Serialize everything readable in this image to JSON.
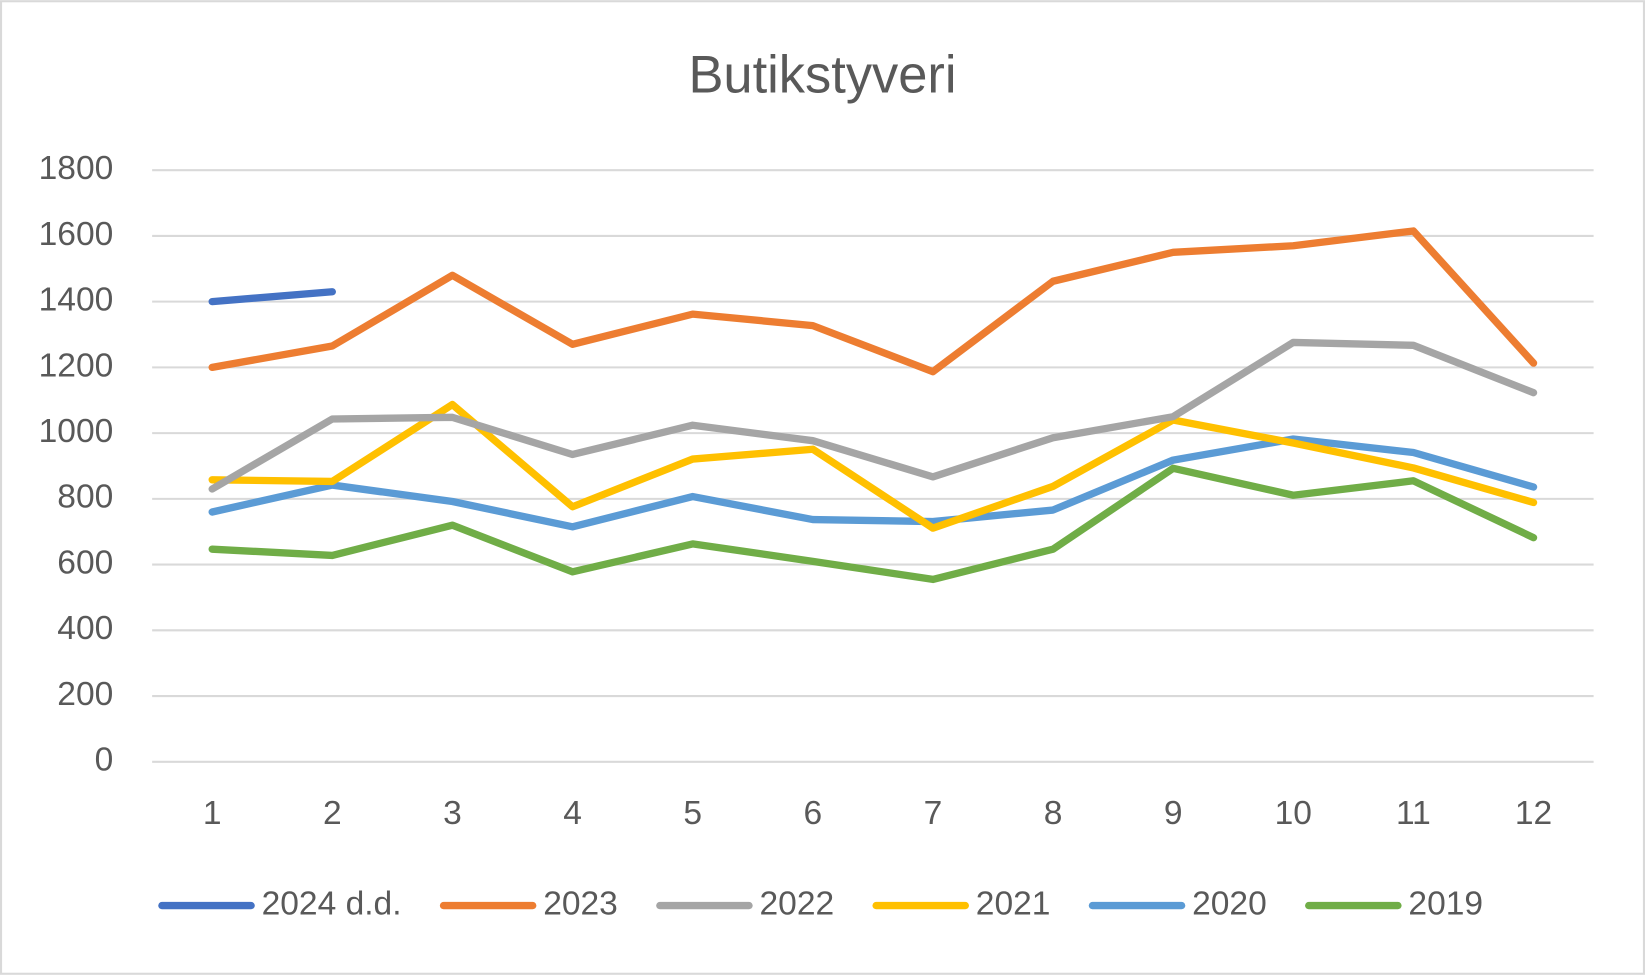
{
  "chart_data": {
    "type": "line",
    "title": "Butikstyveri",
    "categories": [
      1,
      2,
      3,
      4,
      5,
      6,
      7,
      8,
      9,
      10,
      11,
      12
    ],
    "series": [
      {
        "name": "2024 d.d.",
        "color": "#4472c4",
        "values": [
          1400,
          1430,
          null,
          null,
          null,
          null,
          null,
          null,
          null,
          null,
          null,
          null
        ]
      },
      {
        "name": "2023",
        "color": "#ed7d31",
        "values": [
          1200,
          1265,
          1480,
          1270,
          1362,
          1327,
          1187,
          1462,
          1550,
          1570,
          1615,
          1213
        ]
      },
      {
        "name": "2022",
        "color": "#a5a5a5",
        "values": [
          830,
          1043,
          1048,
          935,
          1024,
          977,
          867,
          986,
          1050,
          1276,
          1267,
          1123
        ]
      },
      {
        "name": "2021",
        "color": "#ffc000",
        "values": [
          858,
          853,
          1087,
          776,
          921,
          951,
          711,
          838,
          1040,
          970,
          894,
          789
        ]
      },
      {
        "name": "2020",
        "color": "#5b9bd5",
        "values": [
          760,
          842,
          792,
          715,
          807,
          737,
          731,
          766,
          918,
          982,
          941,
          836
        ]
      },
      {
        "name": "2019",
        "color": "#70ad47",
        "values": [
          647,
          628,
          720,
          578,
          663,
          610,
          555,
          647,
          893,
          811,
          855,
          682
        ]
      }
    ],
    "ylim": [
      0,
      1800
    ],
    "yticks": [
      0,
      200,
      400,
      600,
      800,
      1000,
      1200,
      1400,
      1600,
      1800
    ],
    "grid": true,
    "legend": "bottom"
  }
}
